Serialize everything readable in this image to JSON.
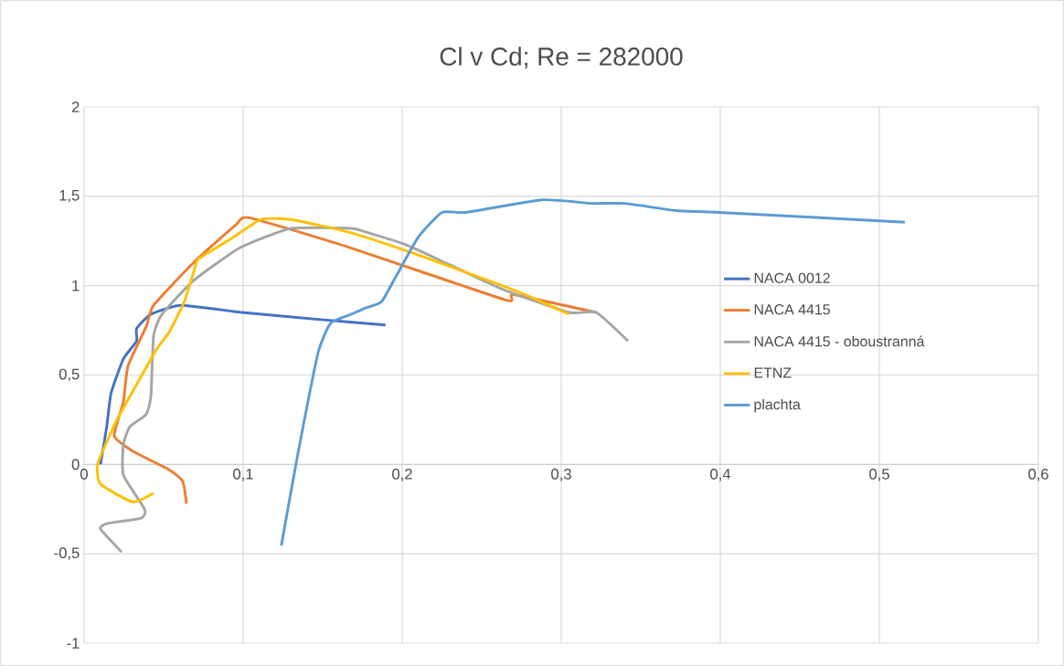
{
  "chart_data": {
    "type": "line",
    "title": "Cl v Cd; Re = 282000",
    "xlim": [
      0,
      0.6
    ],
    "ylim": [
      -1,
      2
    ],
    "xticks": [
      0,
      {
        "value": 0.1,
        "label": "0,1"
      },
      {
        "value": 0.2,
        "label": "0,2"
      },
      {
        "value": 0.3,
        "label": "0,3"
      },
      {
        "value": 0.4,
        "label": "0,4"
      },
      {
        "value": 0.5,
        "label": "0,5"
      },
      {
        "value": 0.6,
        "label": "0,6"
      }
    ],
    "yticks": [
      -1,
      {
        "value": -0.5,
        "label": "-0,5"
      },
      0,
      {
        "value": 0.5,
        "label": "0,5"
      },
      1,
      {
        "value": 1.5,
        "label": "1,5"
      },
      2
    ],
    "grid": true,
    "legend": "right",
    "marker": "none",
    "line_style": "solid",
    "series": [
      {
        "name": "NACA 0012",
        "color": "#4472c4",
        "x": [
          0.0103,
          0.0142,
          0.017,
          0.0247,
          0.033,
          0.033,
          0.042,
          0.061,
          0.0994,
          0.149,
          0.1895
        ],
        "values": [
          0,
          0.21,
          0.4,
          0.59,
          0.69,
          0.76,
          0.84,
          0.89,
          0.85,
          0.81,
          0.78
        ]
      },
      {
        "name": "NACA 4415",
        "color": "#ed7d31",
        "x": [
          0.0644,
          0.062,
          0.0535,
          0.0305,
          0.019,
          0.0247,
          0.0276,
          0.039,
          0.0437,
          0.069,
          0.0954,
          0.104,
          0.168,
          0.265,
          0.27,
          0.322
        ],
        "values": [
          -0.22,
          -0.095,
          -0.03,
          0.075,
          0.16,
          0.35,
          0.55,
          0.77,
          0.89,
          1.13,
          1.34,
          1.38,
          1.21,
          0.92,
          0.95,
          0.85
        ]
      },
      {
        "name": "NACA 4415 - oboustranná",
        "color": "#a5a5a5",
        "x": [
          0.0236,
          0.0103,
          0.015,
          0.036,
          0.038,
          0.0247,
          0.0247,
          0.0287,
          0.039,
          0.042,
          0.0437,
          0.049,
          0.069,
          0.0977,
          0.13,
          0.168,
          0.177,
          0.202,
          0.229,
          0.263,
          0.305,
          0.322,
          0.342
        ],
        "values": [
          -0.49,
          -0.36,
          -0.33,
          -0.3,
          -0.25,
          -0.06,
          0.11,
          0.21,
          0.28,
          0.38,
          0.72,
          0.84,
          1.03,
          1.21,
          1.32,
          1.32,
          1.3,
          1.23,
          1.12,
          0.98,
          0.85,
          0.85,
          0.69
        ]
      },
      {
        "name": "ETNZ",
        "color": "#ffc000",
        "x": [
          0.0437,
          0.0305,
          0.0103,
          0.0086,
          0.0207,
          0.0345,
          0.046,
          0.0535,
          0.063,
          0.069,
          0.072,
          0.092,
          0.111,
          0.13,
          0.166,
          0.204,
          0.269,
          0.305
        ],
        "values": [
          -0.16,
          -0.21,
          -0.11,
          0.005,
          0.25,
          0.47,
          0.65,
          0.74,
          0.91,
          1.08,
          1.15,
          1.26,
          1.37,
          1.37,
          1.3,
          1.19,
          0.98,
          0.84
        ]
      },
      {
        "name": "plachta",
        "color": "#5b9bd5",
        "x": [
          0.124,
          0.134,
          0.147,
          0.155,
          0.168,
          0.177,
          0.187,
          0.196,
          0.21,
          0.225,
          0.24,
          0.288,
          0.319,
          0.34,
          0.372,
          0.399,
          0.516
        ],
        "values": [
          -0.455,
          0.04,
          0.62,
          0.79,
          0.84,
          0.875,
          0.91,
          1.05,
          1.27,
          1.41,
          1.41,
          1.48,
          1.46,
          1.46,
          1.42,
          1.41,
          1.355
        ]
      }
    ]
  }
}
